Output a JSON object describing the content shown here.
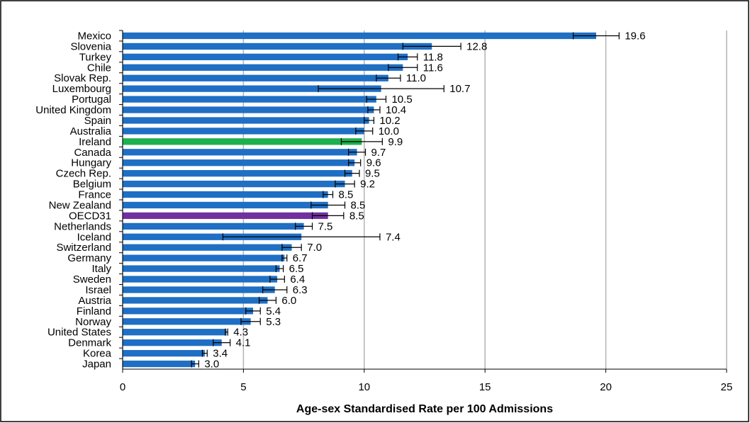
{
  "chart_data": {
    "type": "hbar",
    "x_label": "Age-sex Standardised Rate per 100 Admissions",
    "categories": [
      "Mexico",
      "Slovenia",
      "Turkey",
      "Chile",
      "Slovak Rep.",
      "Luxembourg",
      "Portugal",
      "United Kingdom",
      "Spain",
      "Australia",
      "Ireland",
      "Canada",
      "Hungary",
      "Czech Rep.",
      "Belgium",
      "France",
      "New Zealand",
      "OECD31",
      "Netherlands",
      "Iceland",
      "Switzerland",
      "Germany",
      "Italy",
      "Sweden",
      "Israel",
      "Austria",
      "Finland",
      "Norway",
      "United States",
      "Denmark",
      "Korea",
      "Japan"
    ],
    "values": [
      19.6,
      12.8,
      11.8,
      11.6,
      11.0,
      10.7,
      10.5,
      10.4,
      10.2,
      10.0,
      9.9,
      9.7,
      9.6,
      9.5,
      9.2,
      8.5,
      8.5,
      8.5,
      7.5,
      7.4,
      7.0,
      6.7,
      6.5,
      6.4,
      6.3,
      6.0,
      5.4,
      5.3,
      4.3,
      4.1,
      3.4,
      3.0
    ],
    "value_labels": [
      "19.6",
      "12.8",
      "11.8",
      "11.6",
      "11.0",
      "10.7",
      "10.5",
      "10.4",
      "10.2",
      "10.0",
      "9.9",
      "9.7",
      "9.6",
      "9.5",
      "9.2",
      "8.5",
      "8.5",
      "8.5",
      "7.5",
      "7.4",
      "7.0",
      "6.7",
      "6.5",
      "6.4",
      "6.3",
      "6.0",
      "5.4",
      "5.3",
      "4.3",
      "4.1",
      "3.4",
      "3.0"
    ],
    "errors": [
      0.95,
      1.2,
      0.4,
      0.6,
      0.5,
      2.6,
      0.4,
      0.25,
      0.2,
      0.35,
      0.85,
      0.35,
      0.25,
      0.3,
      0.4,
      0.2,
      0.7,
      0.65,
      0.35,
      3.25,
      0.4,
      0.1,
      0.15,
      0.3,
      0.5,
      0.35,
      0.3,
      0.4,
      0.05,
      0.35,
      0.1,
      0.15
    ],
    "colors": [
      "#1f6fc4",
      "#1f6fc4",
      "#1f6fc4",
      "#1f6fc4",
      "#1f6fc4",
      "#1f6fc4",
      "#1f6fc4",
      "#1f6fc4",
      "#1f6fc4",
      "#1f6fc4",
      "#1db04e",
      "#1f6fc4",
      "#1f6fc4",
      "#1f6fc4",
      "#1f6fc4",
      "#1f6fc4",
      "#1f6fc4",
      "#7030a0",
      "#1f6fc4",
      "#1f6fc4",
      "#1f6fc4",
      "#1f6fc4",
      "#1f6fc4",
      "#1f6fc4",
      "#1f6fc4",
      "#1f6fc4",
      "#1f6fc4",
      "#1f6fc4",
      "#1f6fc4",
      "#1f6fc4",
      "#1f6fc4",
      "#1f6fc4"
    ],
    "xlim": [
      0,
      25
    ],
    "xticks": [
      0,
      5,
      10,
      15,
      20,
      25
    ],
    "grid": true
  }
}
